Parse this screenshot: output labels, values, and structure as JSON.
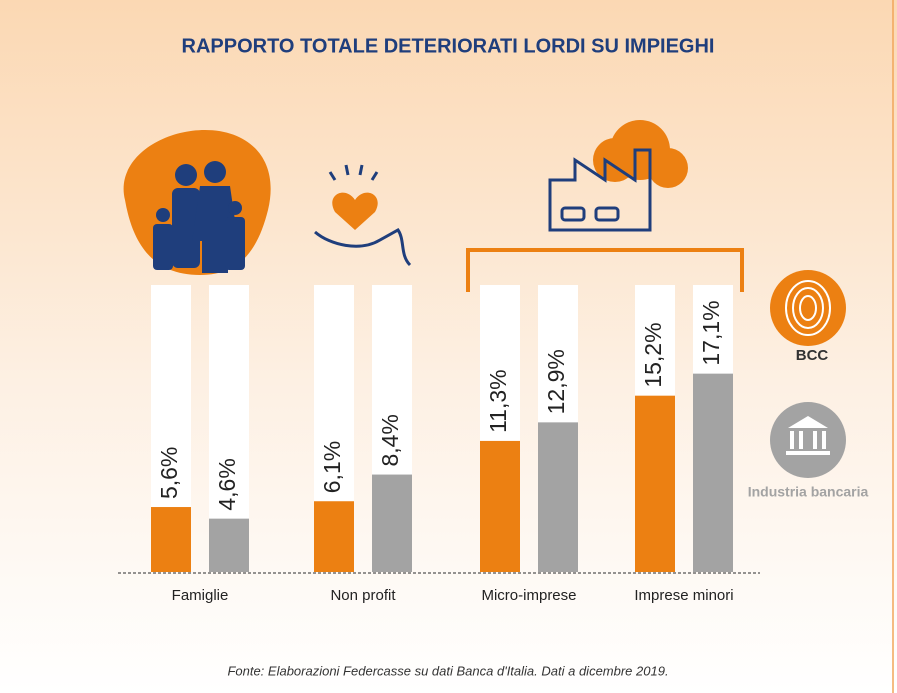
{
  "chart_data": {
    "type": "bar",
    "title": "RAPPORTO TOTALE DETERIORATI LORDI SU IMPIEGHI",
    "categories": [
      "Famiglie",
      "Non profit",
      "Micro-imprese",
      "Imprese minori"
    ],
    "series": [
      {
        "name": "BCC",
        "color": "#ec8012",
        "values": [
          5.6,
          6.1,
          11.3,
          15.2
        ],
        "value_labels": [
          "5,6%",
          "6,1%",
          "11,3%",
          "15,2%"
        ]
      },
      {
        "name": "Industria bancaria",
        "color": "#a3a3a3",
        "values": [
          4.6,
          8.4,
          12.9,
          17.1
        ],
        "value_labels": [
          "4,6%",
          "8,4%",
          "12,9%",
          "17,1%"
        ]
      }
    ],
    "source": "Fonte: Elaborazioni Federcasse su dati Banca d'Italia. Dati a dicembre 2019."
  }
}
